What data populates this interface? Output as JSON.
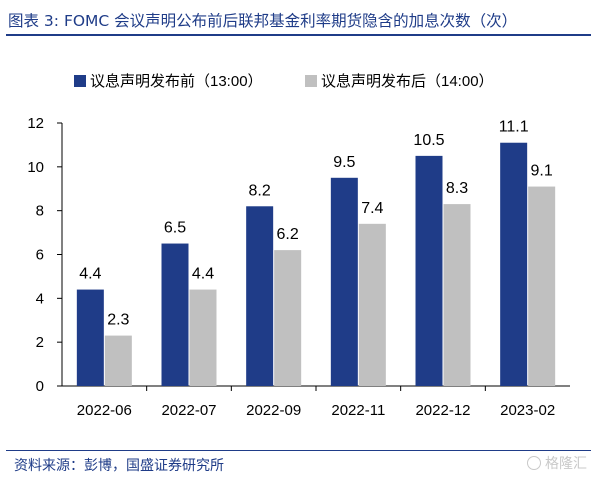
{
  "header": {
    "title": "图表 3: FOMC 会议声明公布前后联邦基金利率期货隐含的加息次数（次）"
  },
  "footer": {
    "source": "资料来源：彭博，国盛证券研究所",
    "watermark": "格隆汇"
  },
  "colors": {
    "before": "#1f3c88",
    "after": "#c0c0c0",
    "axis": "#000000",
    "title": "#1f3c88"
  },
  "chart_data": {
    "type": "bar",
    "categories": [
      "2022-06",
      "2022-07",
      "2022-09",
      "2022-11",
      "2022-12",
      "2023-02"
    ],
    "series": [
      {
        "name": "议息声明发布前（13:00）",
        "values": [
          4.4,
          6.5,
          8.2,
          9.5,
          10.5,
          11.1
        ]
      },
      {
        "name": "议息声明发布后（14:00）",
        "values": [
          2.3,
          4.4,
          6.2,
          7.4,
          8.3,
          9.1
        ]
      }
    ],
    "data_labels": [
      [
        "4.4",
        "6.5",
        "8.2",
        "9.5",
        "10.5",
        "11.1"
      ],
      [
        "2.3",
        "4.4",
        "6.2",
        "7.4",
        "8.3",
        "9.1"
      ]
    ],
    "ylim": [
      0,
      12
    ],
    "yticks": [
      "0",
      "2",
      "4",
      "6",
      "8",
      "10",
      "12"
    ],
    "grid": false,
    "legend_position": "top-left"
  }
}
